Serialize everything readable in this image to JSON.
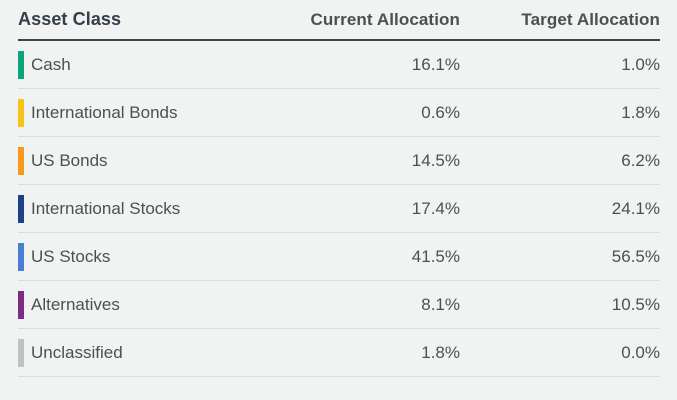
{
  "table": {
    "columns": {
      "asset_class": "Asset Class",
      "current": "Current Allocation",
      "target": "Target Allocation"
    },
    "rows": [
      {
        "asset_class": "Cash",
        "color": "#0ba57d",
        "current": "16.1%",
        "target": "1.0%"
      },
      {
        "asset_class": "International Bonds",
        "color": "#f9c216",
        "current": "0.6%",
        "target": "1.8%"
      },
      {
        "asset_class": "US Bonds",
        "color": "#f6991d",
        "current": "14.5%",
        "target": "6.2%"
      },
      {
        "asset_class": "International Stocks",
        "color": "#1c4189",
        "current": "17.4%",
        "target": "24.1%"
      },
      {
        "asset_class": "US Stocks",
        "color": "#4b7dd2",
        "current": "41.5%",
        "target": "56.5%"
      },
      {
        "asset_class": "Alternatives",
        "color": "#7c2c82",
        "current": "8.1%",
        "target": "10.5%"
      },
      {
        "asset_class": "Unclassified",
        "color": "#c0c1c1",
        "current": "1.8%",
        "target": "0.0%"
      }
    ]
  },
  "chart_data": {
    "type": "table",
    "title": "",
    "columns": [
      "Asset Class",
      "Current Allocation",
      "Target Allocation"
    ],
    "units": "%",
    "rows": [
      [
        "Cash",
        16.1,
        1.0
      ],
      [
        "International Bonds",
        0.6,
        1.8
      ],
      [
        "US Bonds",
        14.5,
        6.2
      ],
      [
        "International Stocks",
        17.4,
        24.1
      ],
      [
        "US Stocks",
        41.5,
        56.5
      ],
      [
        "Alternatives",
        8.1,
        10.5
      ],
      [
        "Unclassified",
        1.8,
        0.0
      ]
    ],
    "row_swatch_colors": [
      "#0ba57d",
      "#f9c216",
      "#f6991d",
      "#1c4189",
      "#4b7dd2",
      "#7c2c82",
      "#c0c1c1"
    ]
  },
  "colors": {
    "background": "#f1f2f2",
    "header_text": "#333e48",
    "row_text": "#4d4f51",
    "header_rule": "#3c434b",
    "row_divider": "#dbdcdd"
  }
}
